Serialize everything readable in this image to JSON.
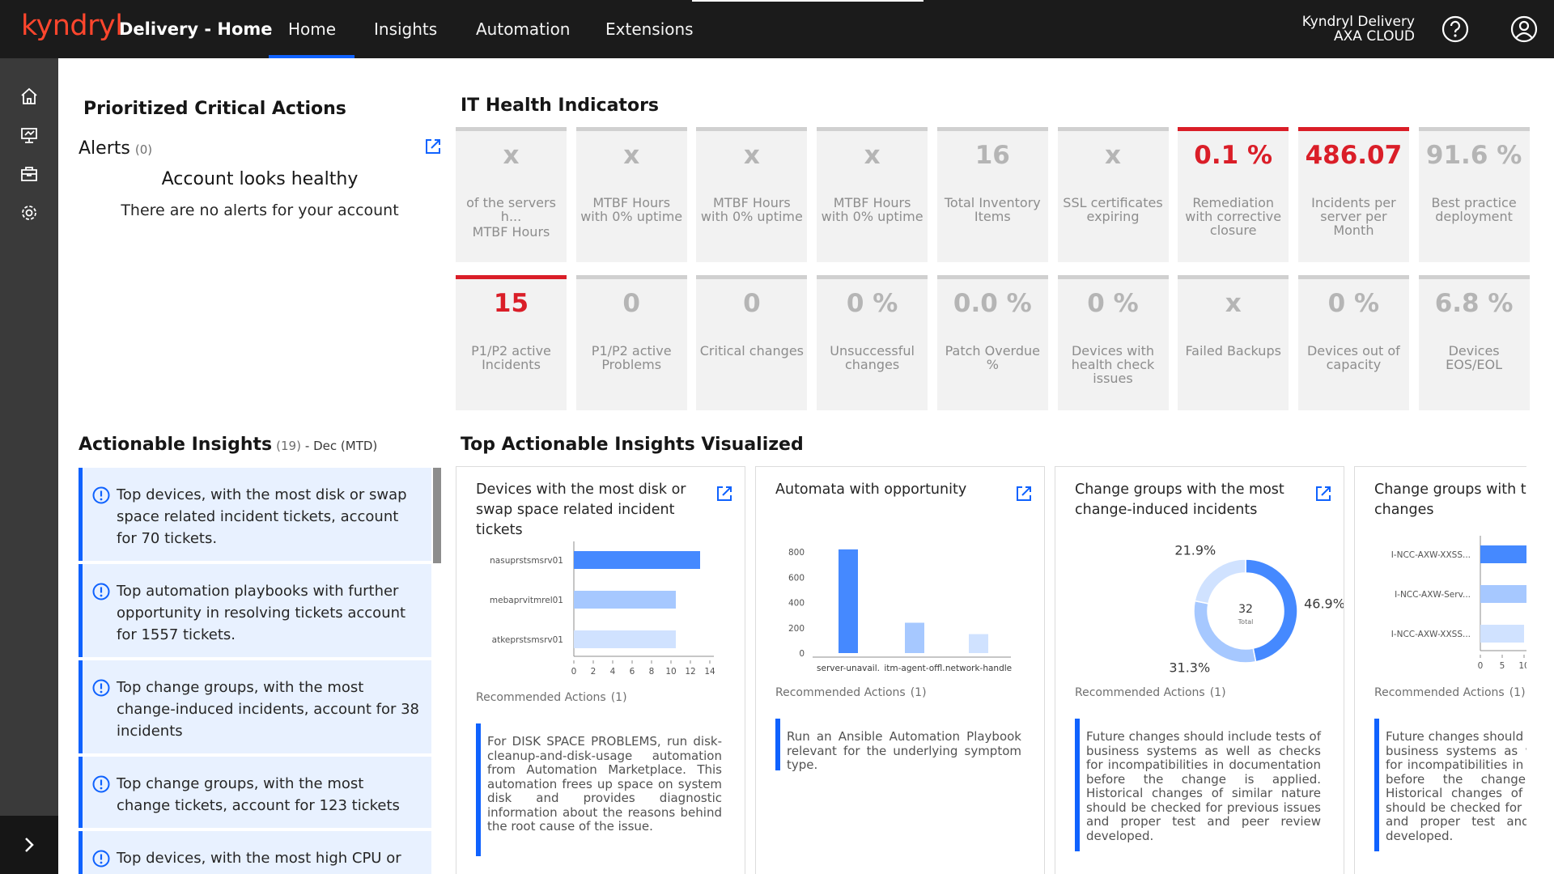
{
  "header": {
    "brand": "kyndryl",
    "title": "Delivery - Home",
    "nav": [
      "Home",
      "Insights",
      "Automation",
      "Extensions"
    ],
    "account": [
      "Kyndryl Delivery",
      "AXA CLOUD"
    ]
  },
  "critical": {
    "title": "Prioritized Critical Actions",
    "alerts_label": "Alerts",
    "alerts_count": "(0)",
    "healthy_title": "Account looks healthy",
    "healthy_text": "There are no alerts for your account"
  },
  "health": {
    "title": "IT Health Indicators",
    "tiles": [
      {
        "value": "x",
        "label": "of the servers h...",
        "sub": "MTBF Hours",
        "alert": false
      },
      {
        "value": "x",
        "label": "MTBF Hours with 0% uptime",
        "alert": false
      },
      {
        "value": "x",
        "label": "MTBF Hours with 0% uptime",
        "alert": false
      },
      {
        "value": "x",
        "label": "MTBF Hours with 0% uptime",
        "alert": false
      },
      {
        "value": "16",
        "label": "Total Inventory Items",
        "alert": false
      },
      {
        "value": "x",
        "label": "SSL certificates expiring",
        "alert": false
      },
      {
        "value": "0.1 %",
        "label": "Remediation with corrective closure",
        "alert": true
      },
      {
        "value": "486.07",
        "label": "Incidents per server per Month",
        "alert": true
      },
      {
        "value": "91.6 %",
        "label": "Best practice deployment",
        "alert": false
      },
      {
        "value": "15",
        "label": "P1/P2 active Incidents",
        "alert": true
      },
      {
        "value": "0",
        "label": "P1/P2 active Problems",
        "alert": false
      },
      {
        "value": "0",
        "label": "Critical changes",
        "alert": false
      },
      {
        "value": "0 %",
        "label": "Unsuccessful changes",
        "alert": false
      },
      {
        "value": "0.0 %",
        "label": "Patch Overdue %",
        "alert": false
      },
      {
        "value": "0 %",
        "label": "Devices with health check issues",
        "alert": false
      },
      {
        "value": "x",
        "label": "Failed Backups",
        "alert": false
      },
      {
        "value": "0 %",
        "label": "Devices out of capacity",
        "alert": false
      },
      {
        "value": "6.8 %",
        "label": "Devices EOS/EOL",
        "alert": false
      }
    ]
  },
  "insights": {
    "title": "Actionable Insights",
    "count": "(19)",
    "period": "- Dec (MTD)",
    "items": [
      "Top devices, with the most disk or swap space related incident tickets, account for 70 tickets.",
      "Top automation playbooks with further opportunity in resolving tickets account for 1557 tickets.",
      "Top change groups, with the most change-induced incidents, account for 38 incidents",
      "Top change groups, with the most change tickets, account for 123 tickets",
      "Top devices, with the most high CPU or memory"
    ]
  },
  "visualized": {
    "title": "Top Actionable Insights Visualized",
    "cards": [
      {
        "title": "Devices with the most disk or swap space related incident tickets",
        "chart": {
          "type": "hbar",
          "categories": [
            "nasuprstsmsrv01",
            "mebaprvitmrel01",
            "atkeprstsmsrv01"
          ],
          "values": [
            13,
            10.5,
            10.5
          ],
          "colors": [
            "#4589ff",
            "#a6c8ff",
            "#d0e2ff"
          ],
          "xlim": [
            0,
            14
          ],
          "xticks": [
            0,
            2,
            4,
            6,
            8,
            10,
            12,
            14
          ]
        },
        "rec_title": "Recommended Actions",
        "rec_count": "(1)",
        "rec_text": "For DISK SPACE PROBLEMS, run disk-cleanup-and-disk-usage automation from Automation Marketplace. This automation frees up space on system disk and provides diagnostic information about the reasons behind the root cause of the issue."
      },
      {
        "title": "Automata with opportunity",
        "chart": {
          "type": "vbar",
          "categories": [
            "server-unavail.",
            "itm-agent-offl.",
            "network-handle"
          ],
          "values": [
            820,
            240,
            150
          ],
          "colors": [
            "#4589ff",
            "#a6c8ff",
            "#d0e2ff"
          ],
          "ylim": [
            0,
            850
          ],
          "yticks": [
            0,
            200,
            400,
            600,
            800
          ]
        },
        "rec_title": "Recommended Actions",
        "rec_count": "(1)",
        "rec_text": "Run an Ansible Automation Playbook relevant for the underlying symptom type."
      },
      {
        "title": "Change groups with the most change-induced incidents",
        "chart": {
          "type": "donut",
          "values": [
            46.9,
            31.3,
            21.9
          ],
          "value_labels": [
            "46.9%",
            "31.3%",
            "21.9%"
          ],
          "colors": [
            "#4589ff",
            "#a6c8ff",
            "#d0e2ff"
          ],
          "total": 32,
          "total_label": "Total"
        },
        "rec_title": "Recommended Actions",
        "rec_count": "(1)",
        "rec_text": "Future changes should include tests of business systems as well as checks for incompatibilities in documentation before the change is applied. Historical changes of similar nature should be checked for previous issues and proper test and peer review developed."
      },
      {
        "title": "Change groups with the most changes",
        "chart": {
          "type": "hbar",
          "categories": [
            "I-NCC-AXW-XXSS...",
            "I-NCC-AXW-Serv...",
            "I-NCC-AXW-XXSS..."
          ],
          "values": [
            12,
            11,
            10
          ],
          "colors": [
            "#4589ff",
            "#a6c8ff",
            "#d0e2ff"
          ],
          "xlim": [
            0,
            15
          ],
          "xticks": [
            0,
            5,
            10
          ]
        },
        "rec_title": "Recommended Actions",
        "rec_count": "(1)",
        "rec_text": "Future changes should include tests of business systems as well as checks for incompatibilities in documentation before the change is applied. Historical changes of similar nature should be checked for previous issues and proper test and peer review developed."
      }
    ]
  }
}
